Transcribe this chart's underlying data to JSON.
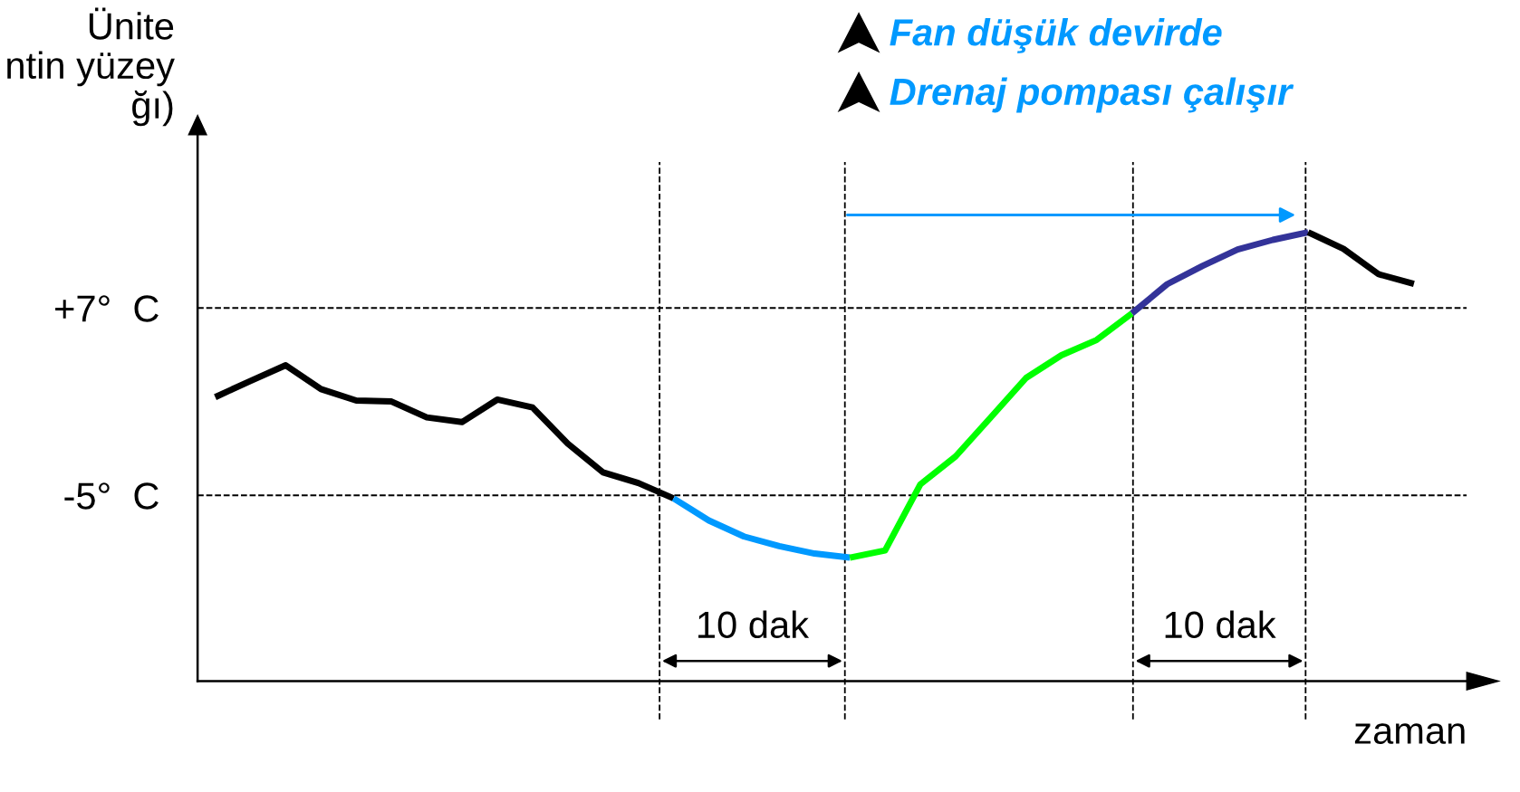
{
  "chart_data": {
    "type": "line",
    "ylabel": "Ünite\nntin yüzey\nğı)",
    "xlabel": "zaman",
    "categories": [
      null,
      null,
      null,
      null,
      null,
      null,
      null,
      null,
      null,
      null,
      null,
      null,
      null,
      null,
      null,
      null,
      null,
      null,
      null,
      null,
      null,
      null,
      null,
      null,
      null,
      null,
      null,
      null,
      null,
      null,
      null,
      null,
      null,
      null,
      null,
      null
    ],
    "ylim": [
      -16.9,
      18.1
    ],
    "tick_labels": "y",
    "grid": true,
    "yticks": [
      {
        "value": 7,
        "label": "+7°  C"
      },
      {
        "value": -5,
        "label": "-5°  C"
      }
    ],
    "series": [
      {
        "color": "#000000",
        "values": [
          1.29,
          2.33,
          3.33,
          1.8,
          1.07,
          1.01,
          -0.01,
          -0.31,
          1.13,
          0.63,
          -1.69,
          -3.53,
          -4.21,
          -5.2,
          null,
          null,
          null,
          null,
          null,
          null,
          null,
          null,
          null,
          null,
          null,
          null,
          null,
          null,
          null,
          null,
          null,
          null,
          null,
          null,
          null,
          null
        ]
      },
      {
        "color": "#0099ff",
        "values": [
          null,
          null,
          null,
          null,
          null,
          null,
          null,
          null,
          null,
          null,
          null,
          null,
          null,
          -5.2,
          -6.61,
          -7.64,
          -8.26,
          -8.73,
          -8.99,
          null,
          null,
          null,
          null,
          null,
          null,
          null,
          null,
          null,
          null,
          null,
          null,
          null,
          null,
          null,
          null,
          null
        ]
      },
      {
        "color": "#00ff00",
        "values": [
          null,
          null,
          null,
          null,
          null,
          null,
          null,
          null,
          null,
          null,
          null,
          null,
          null,
          null,
          null,
          null,
          null,
          null,
          -8.99,
          -8.53,
          -4.3,
          -2.51,
          0.0,
          2.52,
          3.97,
          4.95,
          6.65,
          null,
          null,
          null,
          null,
          null,
          null,
          null,
          null,
          null
        ]
      },
      {
        "color": "#333399",
        "values": [
          null,
          null,
          null,
          null,
          null,
          null,
          null,
          null,
          null,
          null,
          null,
          null,
          null,
          null,
          null,
          null,
          null,
          null,
          null,
          null,
          null,
          null,
          null,
          null,
          null,
          null,
          6.65,
          8.52,
          9.69,
          10.74,
          11.36,
          11.85,
          null,
          null,
          null,
          null
        ]
      },
      {
        "color": "#000000",
        "values": [
          null,
          null,
          null,
          null,
          null,
          null,
          null,
          null,
          null,
          null,
          null,
          null,
          null,
          null,
          null,
          null,
          null,
          null,
          null,
          null,
          null,
          null,
          null,
          null,
          null,
          null,
          null,
          null,
          null,
          null,
          null,
          11.85,
          10.79,
          9.16,
          8.54,
          null
        ]
      }
    ],
    "annotations": [
      "Fan düşük devirde",
      "Drenaj pompası çalışır",
      "10 dak",
      "10 dak"
    ]
  }
}
